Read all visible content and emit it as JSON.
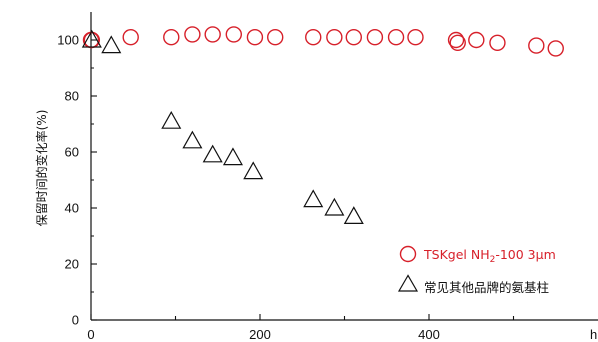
{
  "chart_data": {
    "type": "scatter",
    "ylabel": "保留时间的变化率(%)",
    "xunit": "h",
    "xlim": [
      0,
      600
    ],
    "ylim": [
      0,
      110
    ],
    "xticks": [
      0,
      200,
      400
    ],
    "yticks": [
      0,
      20,
      40,
      60,
      80,
      100
    ],
    "grid": false,
    "legend_position": "bottom-right",
    "series": [
      {
        "name": "TSKgel NH2-100 3µm",
        "name_main": "TSKgel NH",
        "name_sub": "2",
        "name_tail": "-100 3µm",
        "marker": "circle",
        "color": "#d7202a",
        "points": [
          [
            0,
            100
          ],
          [
            1,
            100
          ],
          [
            47,
            101
          ],
          [
            95,
            101
          ],
          [
            120,
            102
          ],
          [
            144,
            102
          ],
          [
            169,
            102
          ],
          [
            194,
            101
          ],
          [
            218,
            101
          ],
          [
            263,
            101
          ],
          [
            288,
            101
          ],
          [
            311,
            101
          ],
          [
            336,
            101
          ],
          [
            361,
            101
          ],
          [
            384,
            101
          ],
          [
            432,
            100
          ],
          [
            434,
            99
          ],
          [
            456,
            100
          ],
          [
            481,
            99
          ],
          [
            527,
            98
          ],
          [
            550,
            97
          ]
        ]
      },
      {
        "name": "常见其他品牌的氨基柱",
        "marker": "triangle",
        "color": "#111111",
        "points": [
          [
            1,
            100
          ],
          [
            24,
            98
          ],
          [
            95,
            71
          ],
          [
            120,
            64
          ],
          [
            144,
            59
          ],
          [
            168,
            58
          ],
          [
            192,
            53
          ],
          [
            263,
            43
          ],
          [
            288,
            40
          ],
          [
            311,
            37
          ]
        ]
      }
    ]
  }
}
